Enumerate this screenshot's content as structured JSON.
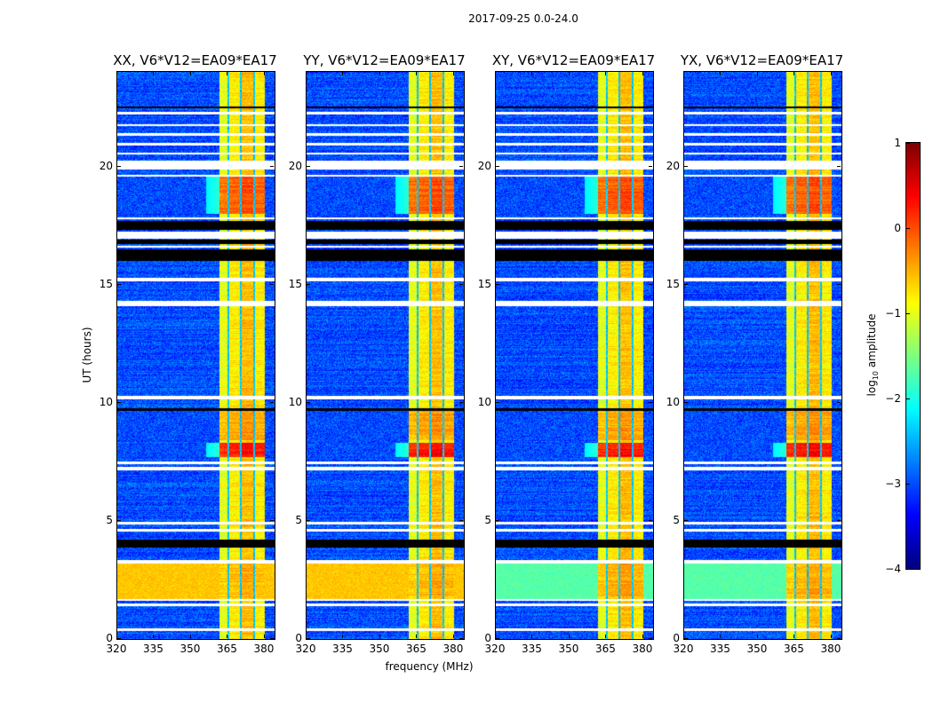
{
  "chart_data": {
    "type": "heatmap",
    "suptitle": "2017-09-25 0.0-24.0",
    "xlabel": "frequency (MHz)",
    "ylabel": "UT (hours)",
    "xlim": [
      320,
      384
    ],
    "ylim": [
      0,
      24
    ],
    "xticks": [
      "320",
      "335",
      "350",
      "365",
      "380"
    ],
    "xtick_values": [
      320,
      335,
      350,
      365,
      380
    ],
    "yticks": [
      "0",
      "5",
      "10",
      "15",
      "20"
    ],
    "ytick_values": [
      0,
      5,
      10,
      15,
      20
    ],
    "colormap": "jet",
    "colorbar": {
      "label_prefix": "log",
      "label_sub": "10",
      "label_suffix": " amplitude",
      "range": [
        -4,
        1
      ],
      "ticks": [
        "1",
        "0",
        "−1",
        "−2",
        "−3",
        "−4"
      ],
      "tick_values": [
        1,
        0,
        -1,
        -2,
        -3,
        -4
      ]
    },
    "panels": [
      {
        "title": "XX, V6*V12=EA09*EA17",
        "cross": false
      },
      {
        "title": "YY, V6*V12=EA09*EA17",
        "cross": false
      },
      {
        "title": "XY, V6*V12=EA09*EA17",
        "cross": true
      },
      {
        "title": "YX, V6*V12=EA09*EA17",
        "cross": true
      }
    ],
    "background_level": -3.0,
    "rfi_band_mhz": [
      361.5,
      380.2
    ],
    "rfi_subbands": [
      {
        "range": [
          361.5,
          365
        ],
        "level": -1.0
      },
      {
        "range": [
          365.6,
          370
        ],
        "level": -0.8
      },
      {
        "range": [
          370.6,
          375.4
        ],
        "level": -0.55
      },
      {
        "range": [
          376,
          380.2
        ],
        "level": -0.8
      }
    ],
    "rfi_gaps_mhz": [
      365.3,
      370.3,
      375.7
    ],
    "events": [
      {
        "hours": [
          18.0,
          19.6
        ],
        "band_level": -0.1,
        "auto_bg": -3.0,
        "cross_bg": -3.0
      },
      {
        "hours": [
          7.7,
          8.3
        ],
        "band_level": 0.25,
        "auto_bg": -3.0,
        "cross_bg": -3.0
      },
      {
        "hours": [
          8.4,
          9.7
        ],
        "band_level": -0.45,
        "auto_bg": -3.0,
        "cross_bg": -3.0
      },
      {
        "hours": [
          1.7,
          3.2
        ],
        "band_level": -0.55,
        "auto_bg": -0.6,
        "cross_bg": -1.7
      }
    ],
    "flagged_white_hours": [
      [
        0.35,
        0.45
      ],
      [
        1.4,
        1.5
      ],
      [
        1.62,
        1.7
      ],
      [
        3.2,
        3.35
      ],
      [
        4.55,
        4.65
      ],
      [
        4.85,
        4.95
      ],
      [
        7.15,
        7.3
      ],
      [
        7.4,
        7.5
      ],
      [
        10.15,
        10.3
      ],
      [
        14.1,
        14.3
      ],
      [
        15.15,
        15.3
      ],
      [
        16.55,
        16.65
      ],
      [
        16.95,
        17.25
      ],
      [
        17.75,
        17.85
      ],
      [
        19.55,
        19.65
      ],
      [
        19.85,
        20.25
      ],
      [
        20.5,
        20.6
      ],
      [
        20.9,
        21.0
      ],
      [
        21.3,
        21.4
      ],
      [
        21.7,
        21.8
      ],
      [
        22.2,
        22.3
      ]
    ],
    "flagged_black_hours": [
      [
        3.85,
        4.2
      ],
      [
        9.65,
        9.75
      ],
      [
        16.0,
        16.5
      ],
      [
        16.7,
        16.9
      ],
      [
        17.3,
        17.7
      ],
      [
        22.45,
        22.55
      ]
    ]
  }
}
